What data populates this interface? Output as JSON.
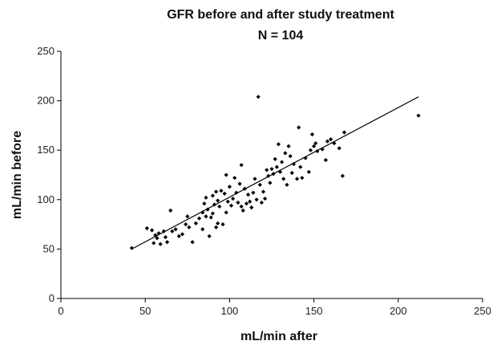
{
  "chart_data": {
    "type": "scatter",
    "title": "GFR before and after study treatment",
    "subtitle": "N = 104",
    "xlabel": "mL/min after",
    "ylabel": "mL/min before",
    "xlim": [
      0,
      250
    ],
    "ylim": [
      0,
      250
    ],
    "xticks": [
      "0",
      "50",
      "100",
      "150",
      "200",
      "250"
    ],
    "yticks": [
      "0",
      "50",
      "100",
      "150",
      "200",
      "250"
    ],
    "grid": false,
    "legend": "none",
    "trendline": {
      "x": [
        42,
        212
      ],
      "y": [
        50,
        204
      ]
    },
    "series": [
      {
        "points": [
          {
            "x": 42,
            "y": 51
          },
          {
            "x": 51,
            "y": 71
          },
          {
            "x": 54,
            "y": 69
          },
          {
            "x": 55,
            "y": 56
          },
          {
            "x": 56,
            "y": 64
          },
          {
            "x": 57,
            "y": 61
          },
          {
            "x": 58,
            "y": 66
          },
          {
            "x": 59,
            "y": 55
          },
          {
            "x": 61,
            "y": 68
          },
          {
            "x": 62,
            "y": 62
          },
          {
            "x": 63,
            "y": 57
          },
          {
            "x": 65,
            "y": 89
          },
          {
            "x": 66,
            "y": 68
          },
          {
            "x": 68,
            "y": 70
          },
          {
            "x": 70,
            "y": 63
          },
          {
            "x": 72,
            "y": 65
          },
          {
            "x": 74,
            "y": 75
          },
          {
            "x": 75,
            "y": 83
          },
          {
            "x": 76,
            "y": 72
          },
          {
            "x": 78,
            "y": 57
          },
          {
            "x": 80,
            "y": 76
          },
          {
            "x": 82,
            "y": 81
          },
          {
            "x": 84,
            "y": 87
          },
          {
            "x": 84,
            "y": 70
          },
          {
            "x": 85,
            "y": 96
          },
          {
            "x": 86,
            "y": 102
          },
          {
            "x": 86,
            "y": 83
          },
          {
            "x": 87,
            "y": 90
          },
          {
            "x": 88,
            "y": 63
          },
          {
            "x": 89,
            "y": 82
          },
          {
            "x": 90,
            "y": 104
          },
          {
            "x": 90,
            "y": 86
          },
          {
            "x": 91,
            "y": 95
          },
          {
            "x": 92,
            "y": 108
          },
          {
            "x": 92,
            "y": 72
          },
          {
            "x": 93,
            "y": 99
          },
          {
            "x": 93,
            "y": 76
          },
          {
            "x": 94,
            "y": 93
          },
          {
            "x": 95,
            "y": 109
          },
          {
            "x": 96,
            "y": 75
          },
          {
            "x": 97,
            "y": 106
          },
          {
            "x": 98,
            "y": 87
          },
          {
            "x": 98,
            "y": 125
          },
          {
            "x": 99,
            "y": 98
          },
          {
            "x": 100,
            "y": 113
          },
          {
            "x": 101,
            "y": 94
          },
          {
            "x": 102,
            "y": 101
          },
          {
            "x": 103,
            "y": 122
          },
          {
            "x": 104,
            "y": 107
          },
          {
            "x": 105,
            "y": 97
          },
          {
            "x": 106,
            "y": 116
          },
          {
            "x": 107,
            "y": 93
          },
          {
            "x": 107,
            "y": 135
          },
          {
            "x": 108,
            "y": 89
          },
          {
            "x": 109,
            "y": 111
          },
          {
            "x": 110,
            "y": 96
          },
          {
            "x": 111,
            "y": 105
          },
          {
            "x": 112,
            "y": 98
          },
          {
            "x": 113,
            "y": 92
          },
          {
            "x": 114,
            "y": 107
          },
          {
            "x": 115,
            "y": 121
          },
          {
            "x": 116,
            "y": 100
          },
          {
            "x": 117,
            "y": 204
          },
          {
            "x": 118,
            "y": 115
          },
          {
            "x": 119,
            "y": 97
          },
          {
            "x": 120,
            "y": 108
          },
          {
            "x": 121,
            "y": 101
          },
          {
            "x": 122,
            "y": 130
          },
          {
            "x": 123,
            "y": 124
          },
          {
            "x": 124,
            "y": 117
          },
          {
            "x": 125,
            "y": 131
          },
          {
            "x": 126,
            "y": 126
          },
          {
            "x": 127,
            "y": 141
          },
          {
            "x": 128,
            "y": 133
          },
          {
            "x": 129,
            "y": 156
          },
          {
            "x": 130,
            "y": 128
          },
          {
            "x": 131,
            "y": 138
          },
          {
            "x": 132,
            "y": 121
          },
          {
            "x": 133,
            "y": 147
          },
          {
            "x": 134,
            "y": 115
          },
          {
            "x": 135,
            "y": 154
          },
          {
            "x": 136,
            "y": 144
          },
          {
            "x": 137,
            "y": 127
          },
          {
            "x": 138,
            "y": 136
          },
          {
            "x": 140,
            "y": 121
          },
          {
            "x": 141,
            "y": 173
          },
          {
            "x": 142,
            "y": 133
          },
          {
            "x": 143,
            "y": 122
          },
          {
            "x": 145,
            "y": 142
          },
          {
            "x": 147,
            "y": 128
          },
          {
            "x": 148,
            "y": 150
          },
          {
            "x": 149,
            "y": 166
          },
          {
            "x": 150,
            "y": 154
          },
          {
            "x": 151,
            "y": 157
          },
          {
            "x": 152,
            "y": 149
          },
          {
            "x": 155,
            "y": 151
          },
          {
            "x": 157,
            "y": 140
          },
          {
            "x": 158,
            "y": 159
          },
          {
            "x": 160,
            "y": 161
          },
          {
            "x": 162,
            "y": 157
          },
          {
            "x": 165,
            "y": 152
          },
          {
            "x": 167,
            "y": 124
          },
          {
            "x": 168,
            "y": 168
          },
          {
            "x": 212,
            "y": 185
          }
        ]
      }
    ]
  }
}
